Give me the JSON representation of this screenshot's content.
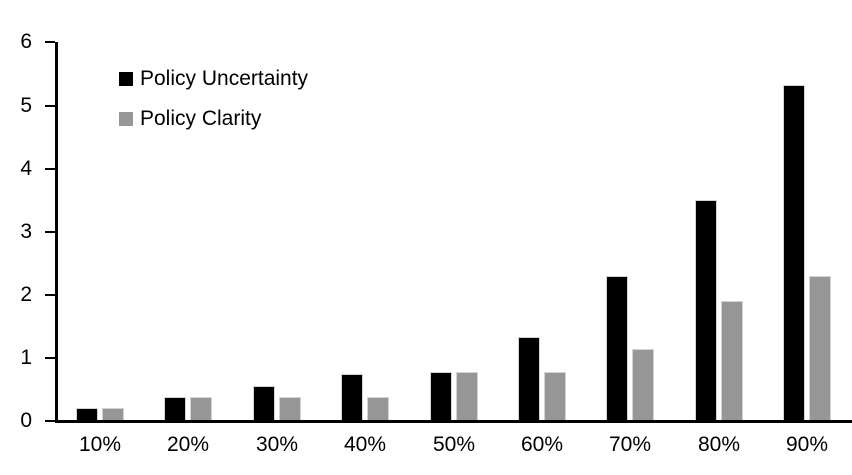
{
  "chart_data": {
    "type": "bar",
    "title": "",
    "categories": [
      "10%",
      "20%",
      "30%",
      "40%",
      "50%",
      "60%",
      "70%",
      "80%",
      "90%"
    ],
    "series": [
      {
        "name": "Policy Uncertainty",
        "color": "#000000",
        "values": [
          0.2,
          0.38,
          0.56,
          0.75,
          0.77,
          1.33,
          2.3,
          3.5,
          5.33
        ]
      },
      {
        "name": "Policy Clarity",
        "color": "#969696",
        "values": [
          0.2,
          0.38,
          0.38,
          0.38,
          0.77,
          0.77,
          1.14,
          1.9,
          2.3
        ]
      }
    ],
    "xlabel": "",
    "ylabel": "",
    "ylim": [
      0,
      6
    ],
    "yticks": [
      0,
      1,
      2,
      3,
      4,
      5,
      6
    ],
    "grid": false,
    "legend_position": "top-left",
    "axis_color": "#000000",
    "background_color": "#ffffff",
    "bar_border_color": "#d3d3d3"
  }
}
